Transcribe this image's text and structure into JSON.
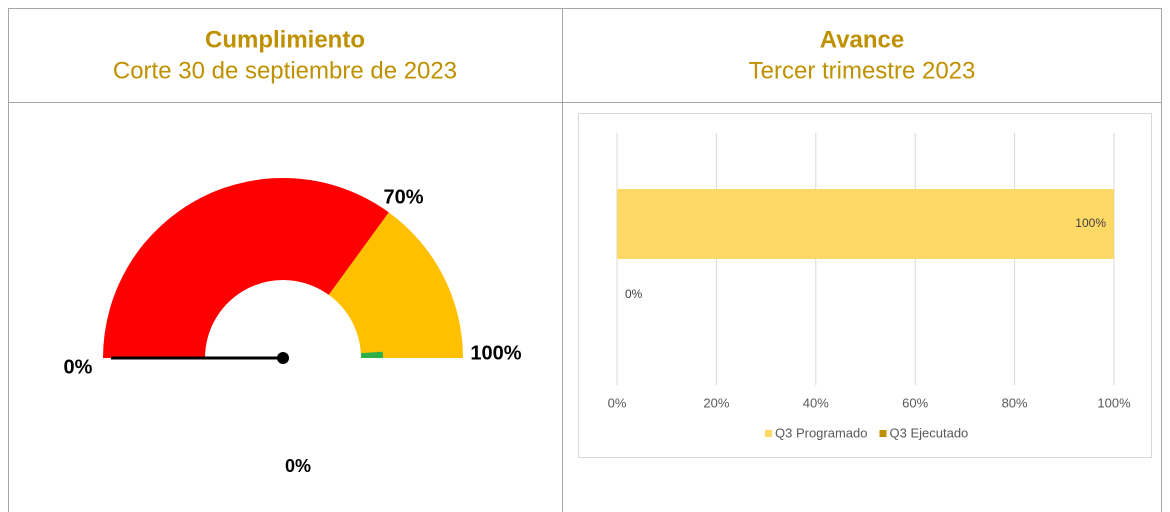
{
  "header": {
    "left": {
      "title": "Cumplimiento",
      "subtitle": "Corte 30 de septiembre de 2023"
    },
    "right": {
      "title": "Avance",
      "subtitle": "Tercer trimestre 2023"
    }
  },
  "chart_data": [
    {
      "type": "gauge",
      "value": 0,
      "value_label": "0%",
      "bands": [
        {
          "from": 0,
          "to": 70,
          "color": "#ff0000"
        },
        {
          "from": 70,
          "to": 100,
          "color": "#ffc000"
        },
        {
          "from": 98,
          "to": 100,
          "color": "#2eb04a"
        }
      ],
      "ylim": [
        0,
        100
      ],
      "yticks": [
        {
          "value": 0,
          "label": "0%"
        },
        {
          "value": 70,
          "label": "70%"
        },
        {
          "value": 100,
          "label": "100%"
        }
      ]
    },
    {
      "type": "bar",
      "orientation": "horizontal",
      "categories": [
        null
      ],
      "series": [
        {
          "name": "Q3 Programado",
          "color": "#ffd966",
          "values": [
            100
          ],
          "value_labels": [
            "100%"
          ]
        },
        {
          "name": "Q3 Ejecutado",
          "color": "#bf9000",
          "values": [
            0
          ],
          "value_labels": [
            "0%"
          ]
        }
      ],
      "xlim": [
        0,
        100
      ],
      "xticks": [
        {
          "value": 0,
          "label": "0%"
        },
        {
          "value": 20,
          "label": "20%"
        },
        {
          "value": 40,
          "label": "40%"
        },
        {
          "value": 60,
          "label": "60%"
        },
        {
          "value": 80,
          "label": "80%"
        },
        {
          "value": 100,
          "label": "100%"
        }
      ],
      "grid": true,
      "legend": "bottom"
    }
  ]
}
